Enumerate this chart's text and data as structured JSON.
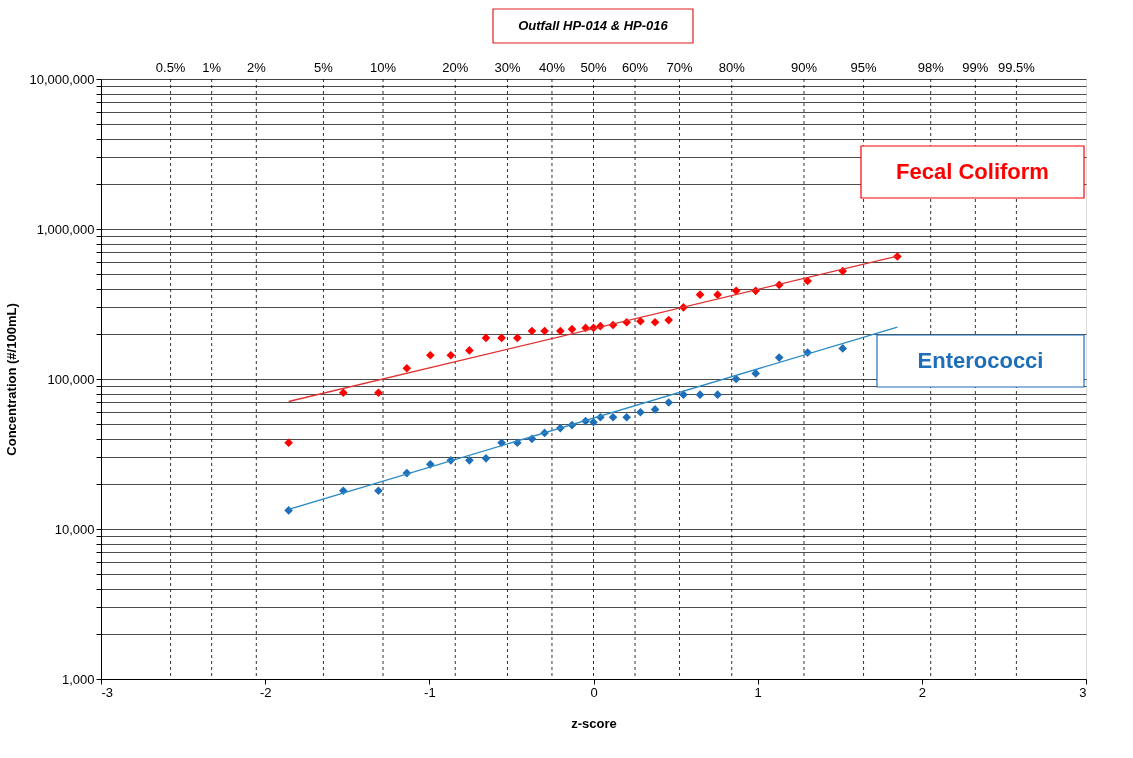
{
  "chart_data": {
    "type": "scatter",
    "title": "Outfall HP-014 & HP-016",
    "xlabel": "z-score",
    "ylabel": "Concentration (#/100mL)",
    "log": "y",
    "grid": "y",
    "legend": "right",
    "marker": "diamond",
    "xlim": [
      -3,
      3
    ],
    "xticks": [
      -3,
      -2,
      -1,
      0,
      1,
      2,
      3
    ],
    "ref_lines": [
      {
        "axis": "x",
        "value": -2.576,
        "line_style": "dashed"
      },
      {
        "axis": "x",
        "value": -2.326,
        "line_style": "dashed"
      },
      {
        "axis": "x",
        "value": -2.054,
        "line_style": "dashed"
      },
      {
        "axis": "x",
        "value": -1.645,
        "line_style": "dashed"
      },
      {
        "axis": "x",
        "value": -1.282,
        "line_style": "dashed"
      },
      {
        "axis": "x",
        "value": -0.842,
        "line_style": "dashed"
      },
      {
        "axis": "x",
        "value": -0.524,
        "line_style": "dashed"
      },
      {
        "axis": "x",
        "value": -0.253,
        "line_style": "dashed"
      },
      {
        "axis": "x",
        "value": 0,
        "line_style": "dashed"
      },
      {
        "axis": "x",
        "value": 0.253,
        "line_style": "dashed"
      },
      {
        "axis": "x",
        "value": 0.524,
        "line_style": "dashed"
      },
      {
        "axis": "x",
        "value": 0.842,
        "line_style": "dashed"
      },
      {
        "axis": "x",
        "value": 1.282,
        "line_style": "dashed"
      },
      {
        "axis": "x",
        "value": 1.645,
        "line_style": "dashed"
      },
      {
        "axis": "x",
        "value": 2.054,
        "line_style": "dashed"
      },
      {
        "axis": "x",
        "value": 2.326,
        "line_style": "dashed"
      },
      {
        "axis": "x",
        "value": 2.576,
        "line_style": "dashed"
      }
    ],
    "annotations": [
      "0.5%",
      "1%",
      "2%",
      "5%",
      "10%",
      "20%",
      "30%",
      "40%",
      "50%",
      "60%",
      "70%",
      "80%",
      "90%",
      "95%",
      "98%",
      "99%",
      "99.5%"
    ],
    "ylim": [
      1000,
      10000000
    ],
    "yticks": [
      {
        "value": 1000,
        "label": "1,000"
      },
      {
        "value": 2000,
        "label": null
      },
      {
        "value": 3000,
        "label": null
      },
      {
        "value": 4000,
        "label": null
      },
      {
        "value": 5000,
        "label": null
      },
      {
        "value": 6000,
        "label": null
      },
      {
        "value": 7000,
        "label": null
      },
      {
        "value": 8000,
        "label": null
      },
      {
        "value": 9000,
        "label": null
      },
      {
        "value": 10000,
        "label": "10,000"
      },
      {
        "value": 20000,
        "label": null
      },
      {
        "value": 30000,
        "label": null
      },
      {
        "value": 40000,
        "label": null
      },
      {
        "value": 50000,
        "label": null
      },
      {
        "value": 60000,
        "label": null
      },
      {
        "value": 70000,
        "label": null
      },
      {
        "value": 80000,
        "label": null
      },
      {
        "value": 90000,
        "label": null
      },
      {
        "value": 100000,
        "label": "100,000"
      },
      {
        "value": 200000,
        "label": null
      },
      {
        "value": 300000,
        "label": null
      },
      {
        "value": 400000,
        "label": null
      },
      {
        "value": 500000,
        "label": null
      },
      {
        "value": 600000,
        "label": null
      },
      {
        "value": 700000,
        "label": null
      },
      {
        "value": 800000,
        "label": null
      },
      {
        "value": 900000,
        "label": null
      },
      {
        "value": 1000000,
        "label": "1,000,000"
      },
      {
        "value": 2000000,
        "label": null
      },
      {
        "value": 3000000,
        "label": null
      },
      {
        "value": 4000000,
        "label": null
      },
      {
        "value": 5000000,
        "label": null
      },
      {
        "value": 6000000,
        "label": null
      },
      {
        "value": 7000000,
        "label": null
      },
      {
        "value": 8000000,
        "label": null
      },
      {
        "value": 9000000,
        "label": null
      },
      {
        "value": 10000000,
        "label": "10,000,000"
      }
    ],
    "series": [
      {
        "name": "Fecal Coliform",
        "color": "#ff0000",
        "x": [
          -1.857,
          -1.524,
          -1.31,
          -1.137,
          -0.994,
          -0.869,
          -0.756,
          -0.655,
          -0.56,
          -0.464,
          -0.375,
          -0.298,
          -0.202,
          -0.131,
          -0.048,
          0,
          0.042,
          0.119,
          0.202,
          0.286,
          0.375,
          0.458,
          0.548,
          0.649,
          0.756,
          0.869,
          0.988,
          1.131,
          1.304,
          1.518,
          1.851
        ],
        "values": [
          37600,
          81000,
          81000,
          118000,
          144000,
          144000,
          155000,
          188000,
          188000,
          188000,
          209000,
          209000,
          209000,
          215000,
          219000,
          219000,
          225000,
          229000,
          239000,
          243000,
          239000,
          247000,
          300000,
          365000,
          365000,
          387000,
          387000,
          424000,
          450000,
          524000,
          656000
        ]
      },
      {
        "name": "Enterococci",
        "color": "#1f6fb8",
        "x": [
          -1.857,
          -1.524,
          -1.31,
          -1.137,
          -0.994,
          -0.869,
          -0.756,
          -0.655,
          -0.56,
          -0.464,
          -0.375,
          -0.298,
          -0.202,
          -0.131,
          -0.048,
          0,
          0.042,
          0.119,
          0.202,
          0.286,
          0.375,
          0.458,
          0.548,
          0.649,
          0.756,
          0.869,
          0.988,
          1.131,
          1.304,
          1.518
        ],
        "values": [
          13300,
          18000,
          18000,
          23600,
          27000,
          28700,
          28700,
          29600,
          37600,
          37600,
          39900,
          43700,
          47100,
          49300,
          52400,
          51500,
          55600,
          55600,
          55600,
          60000,
          62700,
          69700,
          78600,
          78600,
          78600,
          100000,
          109000,
          139000,
          150000,
          160000
        ]
      },
      {
        "type": "line",
        "marker": "none",
        "color": "#e03030",
        "x": [
          -1.857,
          1.851
        ],
        "values": [
          70800,
          660000
        ]
      },
      {
        "type": "line",
        "marker": "none",
        "color": "#2a8ac8",
        "x": [
          -1.857,
          1.851
        ],
        "values": [
          13500,
          222000
        ]
      }
    ]
  }
}
